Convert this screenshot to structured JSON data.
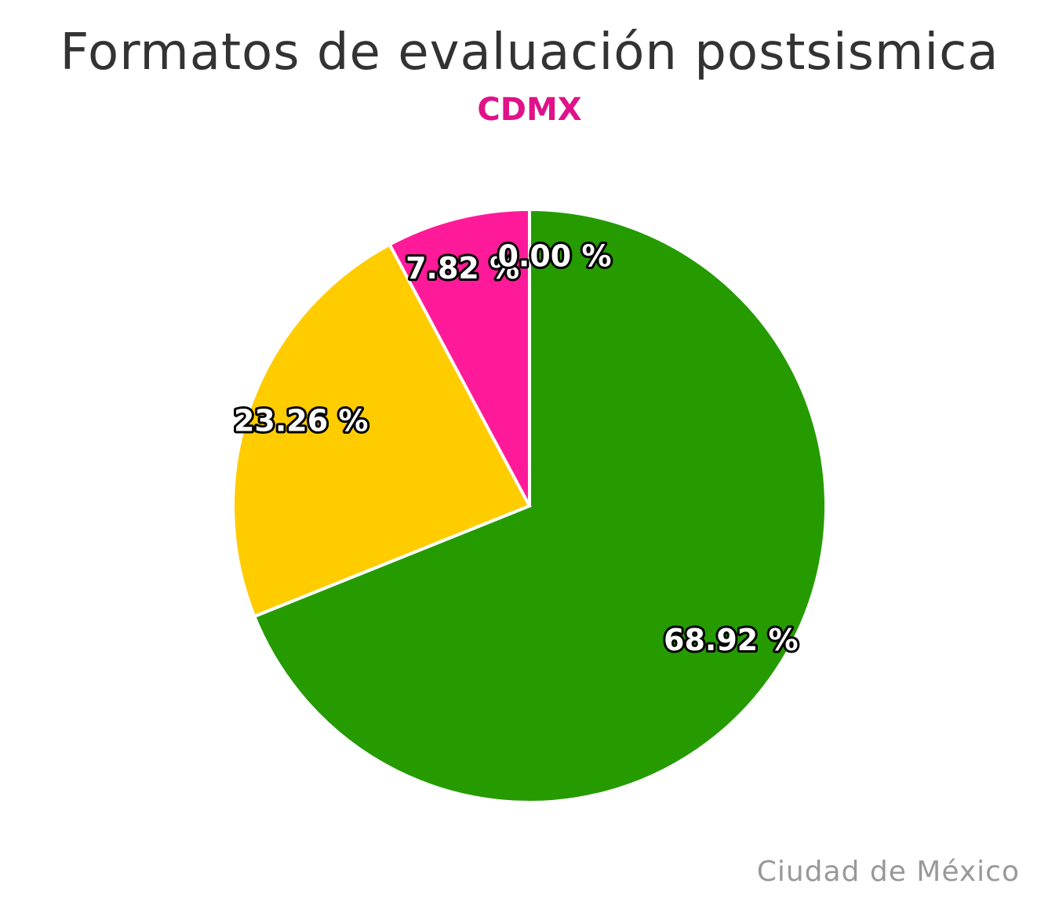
{
  "chart_data": {
    "type": "pie",
    "title": "Formatos de evaluación postsismica",
    "subtitle": "CDMX",
    "credits": "Ciudad de México",
    "slices": [
      {
        "value": 68.92,
        "label": "68.92 %",
        "color": "#259B00"
      },
      {
        "value": 23.26,
        "label": "23.26 %",
        "color": "#FFCC00"
      },
      {
        "value": 7.82,
        "label": "7.82 %",
        "color": "#FF1A99"
      },
      {
        "value": 0.0,
        "label": "0.00 %",
        "color": "#E0E0E0"
      }
    ],
    "start": "top",
    "direction": "clockwise",
    "legend": "none"
  },
  "colors": {
    "title": "#333333",
    "subtitle": "#E0118A",
    "credits": "#999999"
  }
}
